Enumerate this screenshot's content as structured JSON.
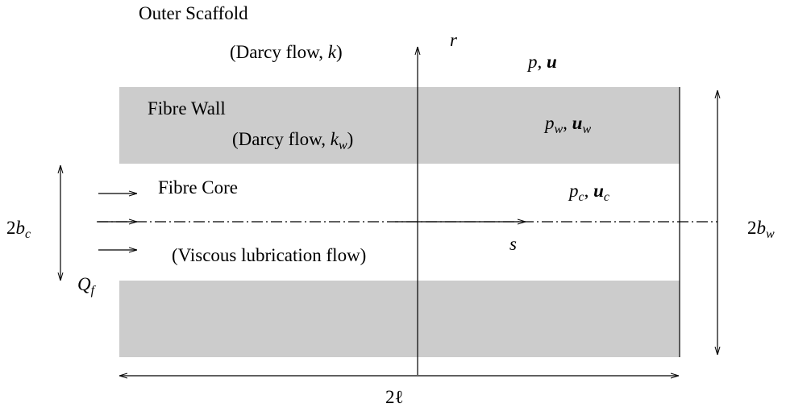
{
  "outer": {
    "title": "Outer Scaffold",
    "flow": {
      "text": "(Darcy flow, ",
      "symbol": "k",
      "close": ")"
    },
    "variables": {
      "pressure": "p",
      "separator": ", ",
      "velocity": "u"
    }
  },
  "wall": {
    "title": "Fibre Wall",
    "flow": {
      "text": "(Darcy flow, ",
      "symbol": "k",
      "subscript": "w",
      "close": ")"
    },
    "variables": {
      "pressure": "p",
      "pressure_sub": "w",
      "separator": ", ",
      "velocity": "u",
      "velocity_sub": "w"
    }
  },
  "core": {
    "title": "Fibre Core",
    "flow": "(Viscous lubrication flow)",
    "variables": {
      "pressure": "p",
      "pressure_sub": "c",
      "separator": ", ",
      "velocity": "u",
      "velocity_sub": "c"
    }
  },
  "axes": {
    "radial": "r",
    "axial": "s"
  },
  "dimensions": {
    "core_width": {
      "factor": "2",
      "symbol": "b",
      "subscript": "c"
    },
    "wall_width": {
      "factor": "2",
      "symbol": "b",
      "subscript": "w"
    },
    "length": "2ℓ",
    "flux": {
      "symbol": "Q",
      "subscript": "f"
    }
  }
}
